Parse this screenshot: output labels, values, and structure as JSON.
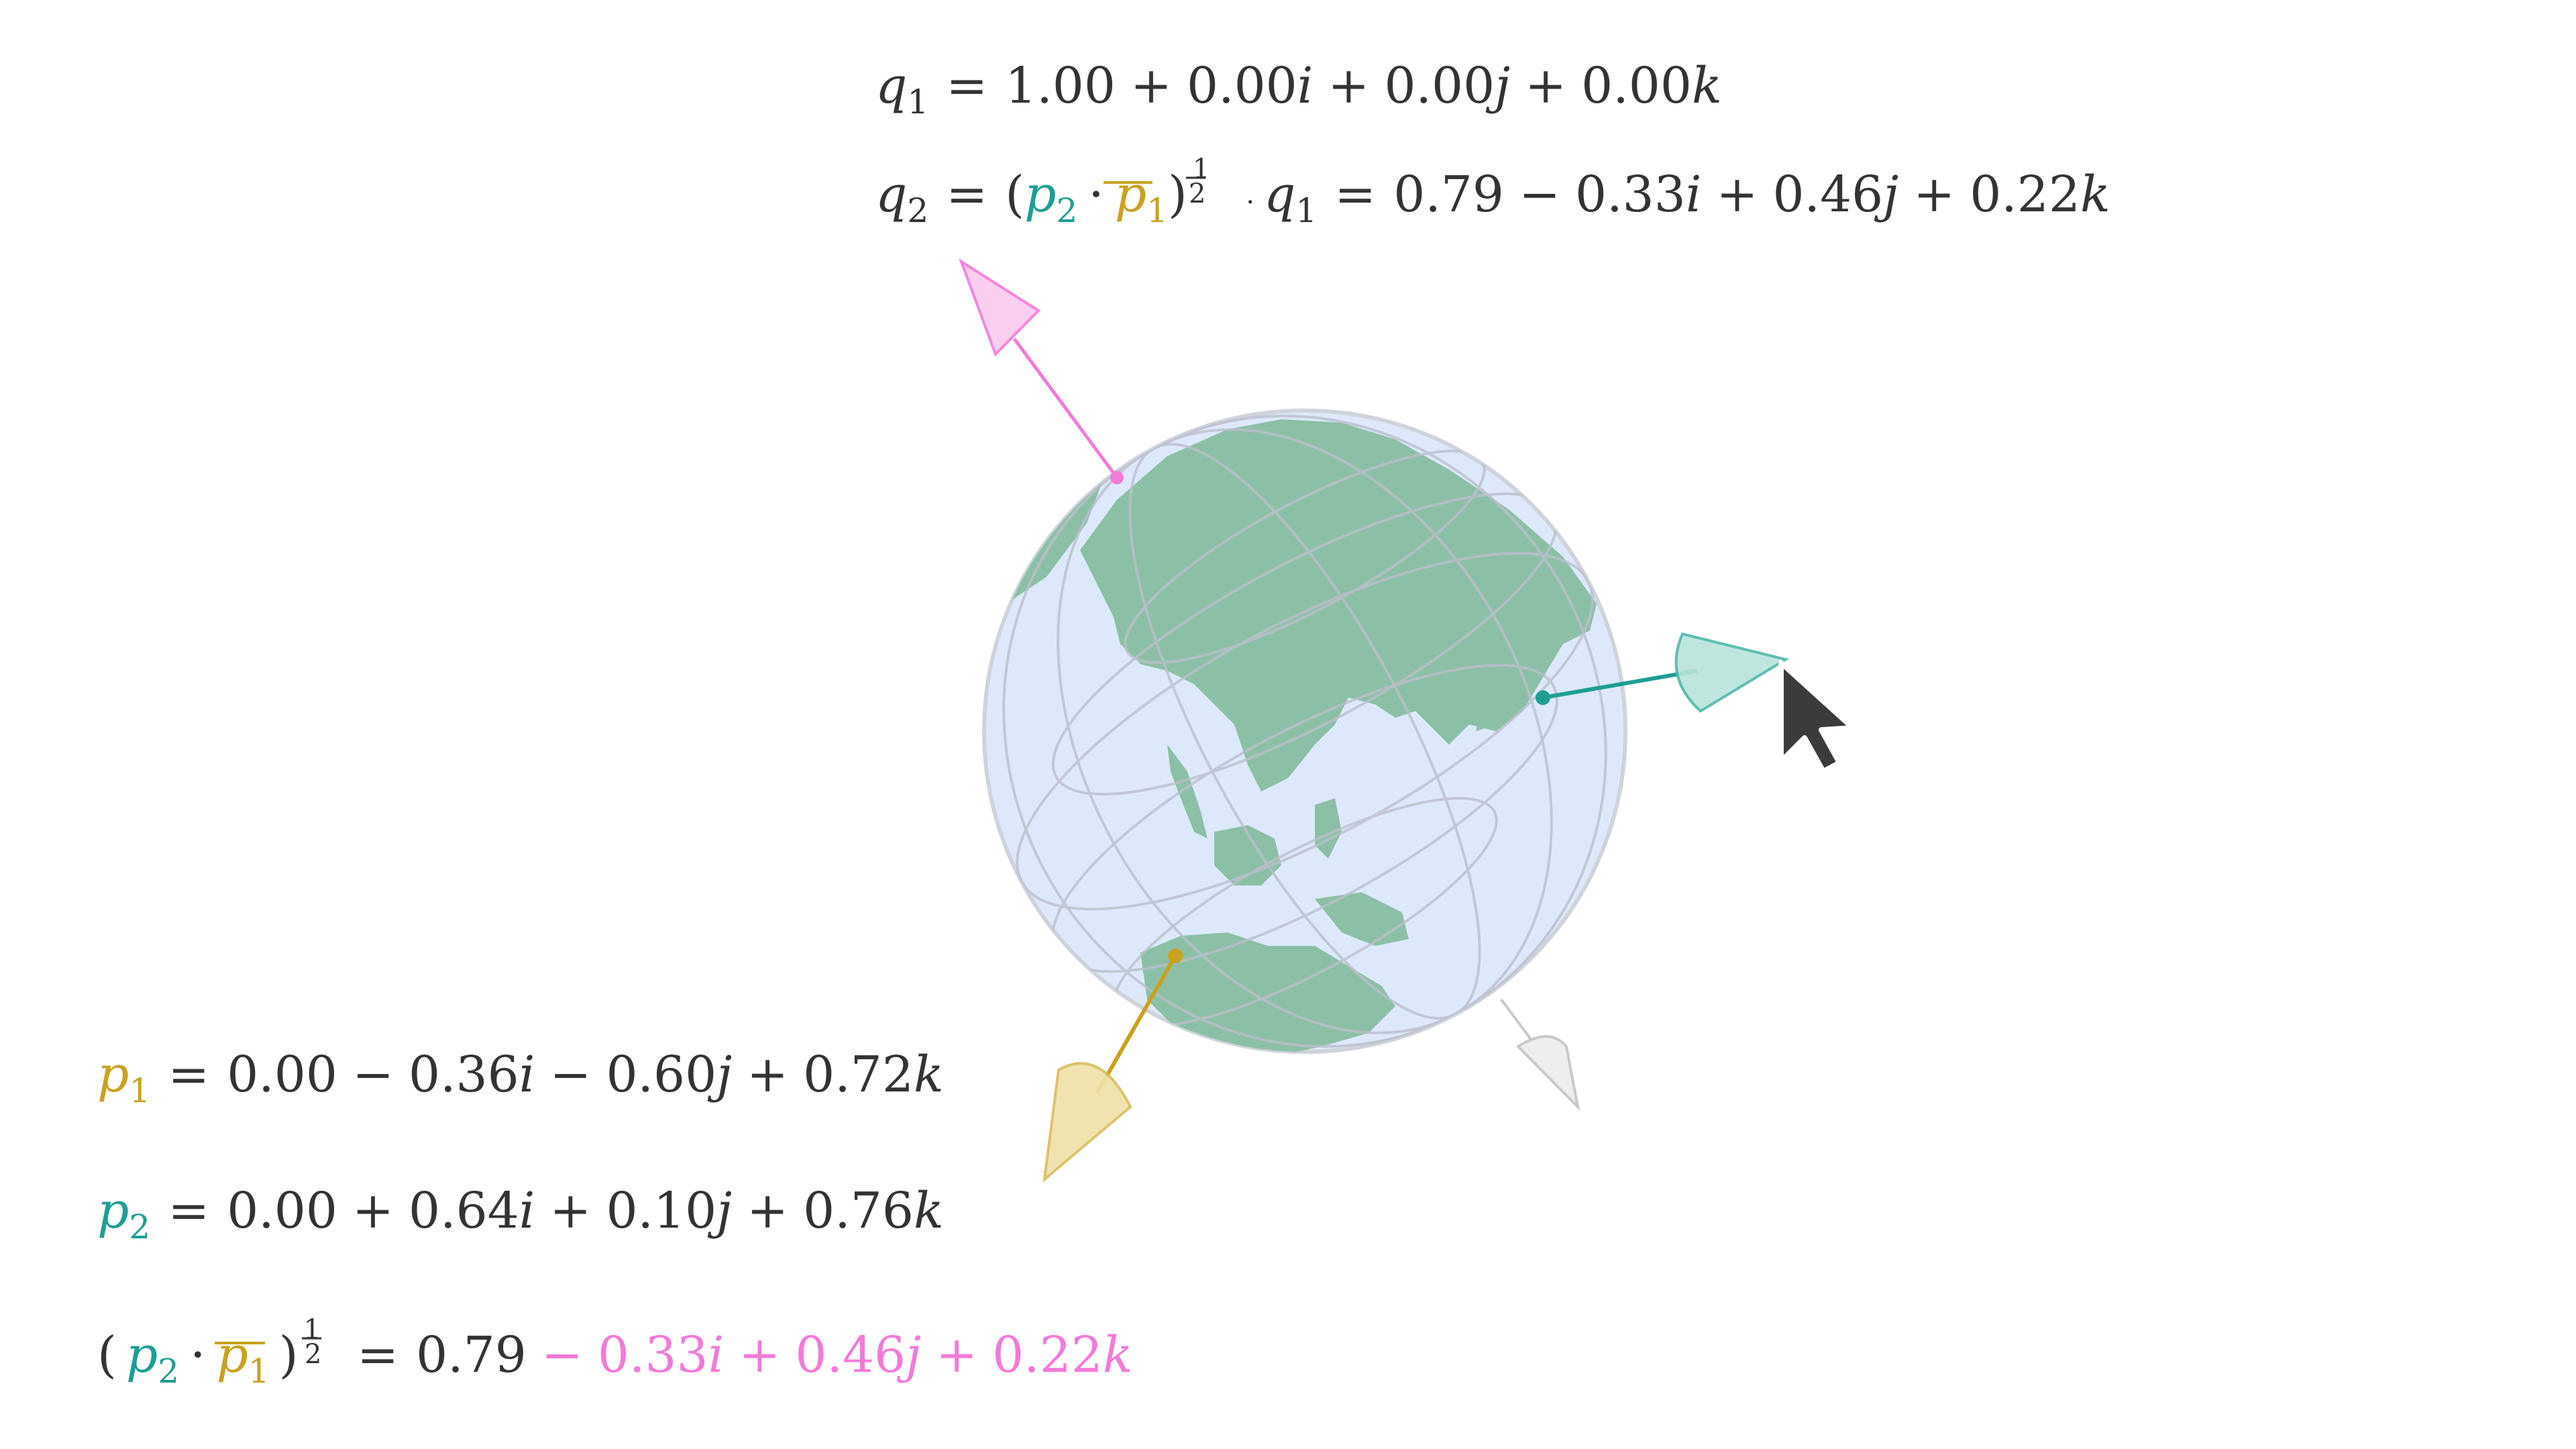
{
  "colors": {
    "text": "#333333",
    "p1": "#c9a21f",
    "p2": "#1f9e94",
    "result": "#f47ad8",
    "globe_fill": "#dde9fb",
    "land": "#8cc0a6",
    "grid": "#bcbfcc",
    "ghost": "#c9c9c9",
    "cursor": "#3b3b3b"
  },
  "symbols": {
    "equals": "=",
    "plus": "+",
    "minus": "−",
    "dot": "·",
    "lparen": "(",
    "rparen": ")",
    "half_num": "1",
    "half_den": "2",
    "q": "q",
    "p": "p",
    "sub1": "1",
    "sub2": "2"
  },
  "q1": {
    "w": "1.00",
    "terms": [
      {
        "sign": "+",
        "value": "0.00",
        "unit": "i"
      },
      {
        "sign": "+",
        "value": "0.00",
        "unit": "j"
      },
      {
        "sign": "+",
        "value": "0.00",
        "unit": "k"
      }
    ]
  },
  "q2": {
    "w": "0.79",
    "terms": [
      {
        "sign": "−",
        "value": "0.33",
        "unit": "i"
      },
      {
        "sign": "+",
        "value": "0.46",
        "unit": "j"
      },
      {
        "sign": "+",
        "value": "0.22",
        "unit": "k"
      }
    ]
  },
  "p1": {
    "w": "0.00",
    "terms": [
      {
        "sign": "−",
        "value": "0.36",
        "unit": "i"
      },
      {
        "sign": "−",
        "value": "0.60",
        "unit": "j"
      },
      {
        "sign": "+",
        "value": "0.72",
        "unit": "k"
      }
    ]
  },
  "p2": {
    "w": "0.00",
    "terms": [
      {
        "sign": "+",
        "value": "0.64",
        "unit": "i"
      },
      {
        "sign": "+",
        "value": "0.10",
        "unit": "j"
      },
      {
        "sign": "+",
        "value": "0.76",
        "unit": "k"
      }
    ]
  },
  "result": {
    "w": "0.79",
    "terms": [
      {
        "sign": "−",
        "value": "0.33",
        "unit": "i"
      },
      {
        "sign": "+",
        "value": "0.46",
        "unit": "j"
      },
      {
        "sign": "+",
        "value": "0.22",
        "unit": "k"
      }
    ]
  },
  "icons": {
    "pink_arrow": "arrow-cone-icon",
    "teal_arrow": "arrow-cone-icon",
    "gold_arrow": "arrow-cone-icon",
    "ghost_arrow": "arrow-cone-icon",
    "cursor": "mouse-pointer-icon",
    "globe": "globe-icon"
  }
}
